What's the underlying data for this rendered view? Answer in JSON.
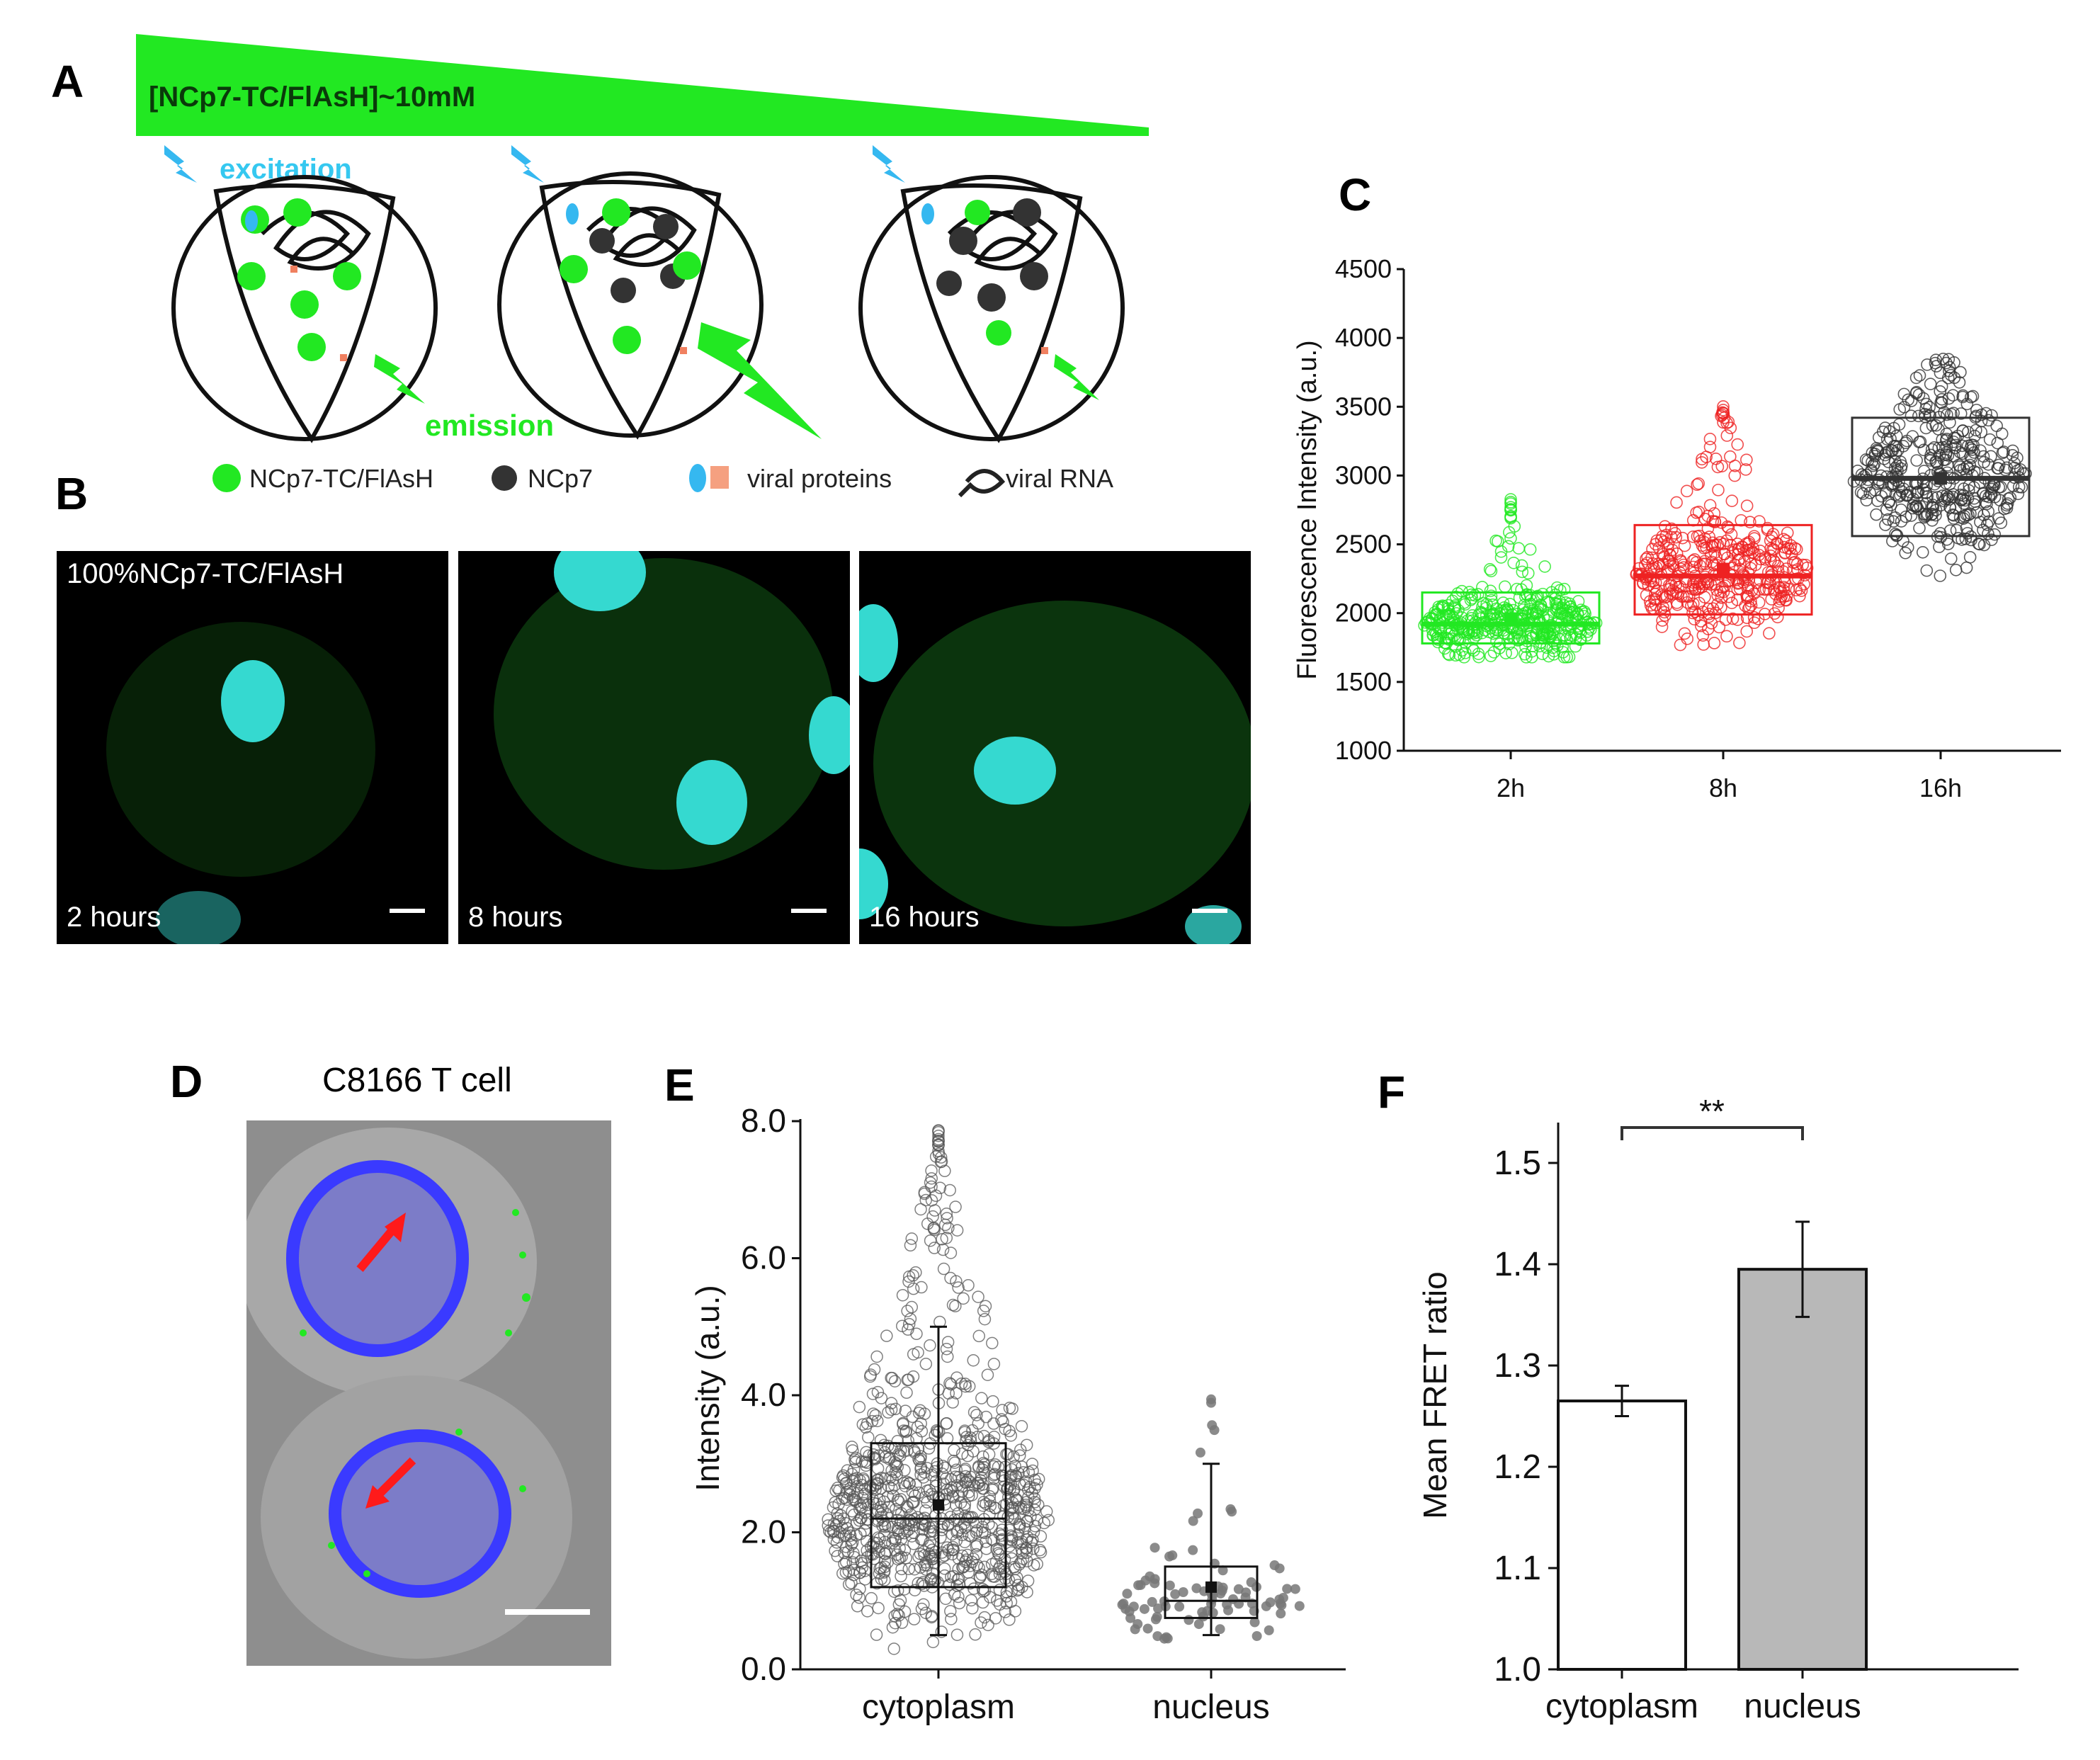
{
  "panels": {
    "A": {
      "label": "A",
      "gradient_text": "[NCp7-TC/FlAsH]~10mM",
      "excitation": "excitation",
      "emission": "emission",
      "legend": [
        "NCp7-TC/FlAsH",
        "NCp7",
        "viral proteins",
        "viral RNA"
      ]
    },
    "B": {
      "label": "B",
      "header": "100%NCp7-TC/FlAsH",
      "times": [
        "2 hours",
        "8 hours",
        "16 hours"
      ]
    },
    "C": {
      "label": "C",
      "ylabel": "Fluorescence Intensity (a.u.)",
      "yticks": [
        "1000",
        "1500",
        "2000",
        "2500",
        "3000",
        "3500",
        "4000",
        "4500"
      ],
      "xticks": [
        "2h",
        "8h",
        "16h"
      ]
    },
    "D": {
      "label": "D",
      "title": "C8166 T cell"
    },
    "E": {
      "label": "E",
      "ylabel": "Intensity (a.u.)",
      "yticks": [
        "0.0",
        "2.0",
        "4.0",
        "6.0",
        "8.0"
      ],
      "xticks": [
        "cytoplasm",
        "nucleus"
      ]
    },
    "F": {
      "label": "F",
      "ylabel": "Mean FRET ratio",
      "yticks": [
        "1.0",
        "1.1",
        "1.2",
        "1.3",
        "1.4",
        "1.5"
      ],
      "xticks": [
        "cytoplasm",
        "nucleus"
      ],
      "significance": "**"
    }
  },
  "colors": {
    "green": "#22e822",
    "cyan": "#35d9e8",
    "red_series": "#ee2222",
    "gray_bar": "#b8b8b8"
  },
  "chart_data": [
    {
      "id": "C",
      "type": "box",
      "title": "",
      "ylabel": "Fluorescence Intensity (a.u.)",
      "ylim": [
        1000,
        4500
      ],
      "categories": [
        "2h",
        "8h",
        "16h"
      ],
      "series": [
        {
          "name": "2h",
          "color": "#22e822",
          "q1": 1780,
          "median": 1920,
          "q3": 2150,
          "mean": 1960,
          "min": 1680,
          "max": 2870
        },
        {
          "name": "8h",
          "color": "#ee2222",
          "q1": 1990,
          "median": 2270,
          "q3": 2640,
          "mean": 2320,
          "min": 1600,
          "max": 3520
        },
        {
          "name": "16h",
          "color": "#333333",
          "q1": 2560,
          "median": 2980,
          "q3": 3420,
          "mean": 2980,
          "min": 2100,
          "max": 3850
        }
      ]
    },
    {
      "id": "E",
      "type": "box",
      "ylabel": "Intensity (a.u.)",
      "ylim": [
        0,
        8
      ],
      "categories": [
        "cytoplasm",
        "nucleus"
      ],
      "series": [
        {
          "name": "cytoplasm",
          "q1": 1.2,
          "median": 2.2,
          "q3": 3.3,
          "mean": 2.4,
          "whisker_low": 0.5,
          "whisker_high": 5.0,
          "min": 0.3,
          "max": 7.9
        },
        {
          "name": "nucleus",
          "q1": 0.75,
          "median": 1.0,
          "q3": 1.5,
          "mean": 1.2,
          "whisker_low": 0.5,
          "whisker_high": 3.0,
          "min": 0.4,
          "max": 4.1
        }
      ]
    },
    {
      "id": "F",
      "type": "bar",
      "ylabel": "Mean FRET ratio",
      "ylim": [
        1.0,
        1.55
      ],
      "categories": [
        "cytoplasm",
        "nucleus"
      ],
      "values": [
        1.265,
        1.395
      ],
      "errors": [
        0.015,
        0.047
      ],
      "significance": "**"
    }
  ]
}
